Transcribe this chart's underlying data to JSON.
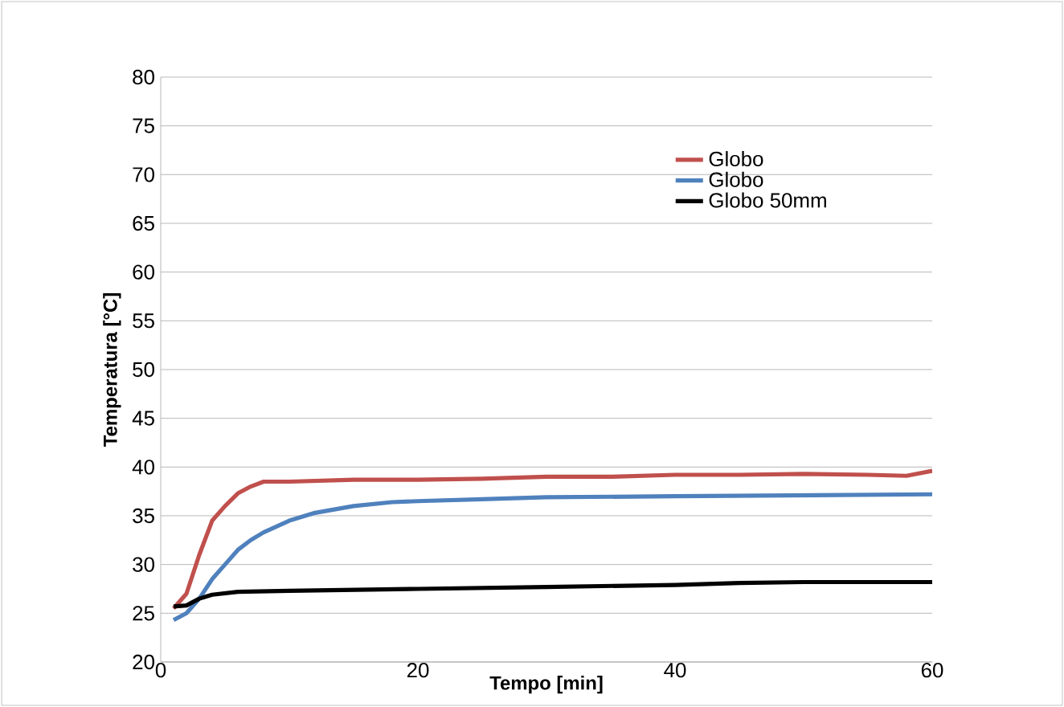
{
  "chart_data": {
    "type": "line",
    "xlabel": "Tempo [min]",
    "ylabel": "Temperatura [°C]",
    "xlim": [
      0,
      60
    ],
    "xticks": [
      0,
      20,
      40,
      60
    ],
    "ylim": [
      20,
      80
    ],
    "yticks": [
      20,
      25,
      30,
      35,
      40,
      45,
      50,
      55,
      60,
      65,
      70,
      75,
      80
    ],
    "grid": "y",
    "legend": "top right",
    "marker": "none",
    "line_style": "solid",
    "series": [
      {
        "name": "Globo",
        "color": "#c0504d",
        "x": [
          1,
          2,
          3,
          4,
          5,
          6,
          7,
          8,
          10,
          15,
          20,
          25,
          30,
          35,
          40,
          45,
          50,
          55,
          58,
          60
        ],
        "values": [
          25.5,
          27,
          31,
          34.5,
          36,
          37.3,
          38,
          38.5,
          38.5,
          38.7,
          38.7,
          38.8,
          39,
          39,
          39.2,
          39.2,
          39.3,
          39.2,
          39.1,
          39.6
        ]
      },
      {
        "name": "Globo",
        "color": "#4f81bd",
        "x": [
          1,
          2,
          3,
          4,
          5,
          6,
          7,
          8,
          10,
          12,
          15,
          18,
          20,
          25,
          30,
          40,
          50,
          60
        ],
        "values": [
          24.3,
          25,
          26.5,
          28.5,
          30,
          31.5,
          32.5,
          33.3,
          34.5,
          35.3,
          36,
          36.4,
          36.5,
          36.7,
          36.9,
          37,
          37.1,
          37.2
        ]
      },
      {
        "name": "Globo 50mm",
        "color": "#000000",
        "x": [
          1,
          2,
          3,
          4,
          6,
          10,
          20,
          30,
          40,
          45,
          50,
          60
        ],
        "values": [
          25.7,
          25.8,
          26.5,
          26.9,
          27.2,
          27.3,
          27.5,
          27.7,
          27.9,
          28.1,
          28.2,
          28.2
        ]
      }
    ]
  }
}
